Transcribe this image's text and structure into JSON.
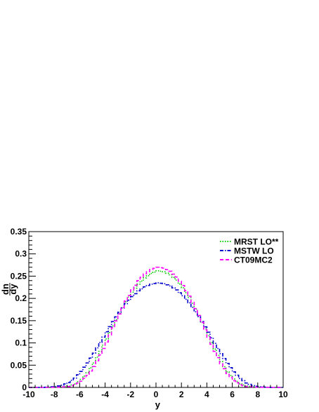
{
  "chart_data": {
    "type": "line",
    "title": "",
    "xlabel": "y",
    "ylabel_numerator": "dn",
    "ylabel_denominator": "dy",
    "xlim": [
      -10,
      10
    ],
    "ylim": [
      0,
      0.35
    ],
    "x_ticks": [
      "-10",
      "-8",
      "-6",
      "-4",
      "-2",
      "0",
      "2",
      "4",
      "6",
      "8",
      "10"
    ],
    "y_ticks": [
      "0",
      "0.05",
      "0.1",
      "0.15",
      "0.2",
      "0.25",
      "0.3",
      "0.35"
    ],
    "grid": false,
    "legend_position": "top-right",
    "series": [
      {
        "name": "MRST LO**",
        "color": "#00cc00",
        "dash": "dotted",
        "x": [
          -10,
          -9,
          -8,
          -7,
          -6.5,
          -6,
          -5.5,
          -5,
          -4.5,
          -4,
          -3.5,
          -3,
          -2.5,
          -2,
          -1.5,
          -1,
          -0.5,
          0,
          0.5,
          1,
          1.5,
          2,
          2.5,
          3,
          3.5,
          4,
          4.5,
          5,
          5.5,
          6,
          6.5,
          7,
          8,
          9,
          10
        ],
        "values": [
          0,
          0,
          0.0005,
          0.003,
          0.008,
          0.018,
          0.033,
          0.055,
          0.081,
          0.109,
          0.138,
          0.166,
          0.192,
          0.214,
          0.232,
          0.246,
          0.256,
          0.262,
          0.26,
          0.253,
          0.241,
          0.224,
          0.202,
          0.176,
          0.147,
          0.116,
          0.086,
          0.058,
          0.035,
          0.019,
          0.008,
          0.003,
          0.0005,
          0,
          0
        ]
      },
      {
        "name": "MSTW LO",
        "color": "#0000cc",
        "dash": "dash-dot",
        "x": [
          -10,
          -9,
          -8,
          -7.5,
          -7,
          -6.5,
          -6,
          -5.5,
          -5,
          -4.5,
          -4,
          -3.5,
          -3,
          -2.5,
          -2,
          -1.5,
          -1,
          -0.5,
          0,
          0.5,
          1,
          1.5,
          2,
          2.5,
          3,
          3.5,
          4,
          4.5,
          5,
          5.5,
          6,
          6.5,
          7,
          7.5,
          8,
          9,
          10
        ],
        "values": [
          0,
          0,
          0.002,
          0.005,
          0.011,
          0.021,
          0.036,
          0.055,
          0.077,
          0.101,
          0.125,
          0.148,
          0.169,
          0.188,
          0.204,
          0.217,
          0.226,
          0.232,
          0.235,
          0.233,
          0.228,
          0.219,
          0.206,
          0.19,
          0.17,
          0.148,
          0.124,
          0.099,
          0.076,
          0.054,
          0.035,
          0.02,
          0.01,
          0.004,
          0.0015,
          0,
          0
        ]
      },
      {
        "name": "CT09MC2",
        "color": "#ff00ff",
        "dash": "dashed",
        "x": [
          -10,
          -9,
          -8,
          -7,
          -6.5,
          -6,
          -5.5,
          -5,
          -4.5,
          -4,
          -3.5,
          -3,
          -2.5,
          -2,
          -1.5,
          -1,
          -0.5,
          0,
          0.5,
          1,
          1.5,
          2,
          2.5,
          3,
          3.5,
          4,
          4.5,
          5,
          5.5,
          6,
          6.5,
          7,
          8,
          9,
          10
        ],
        "values": [
          0,
          0,
          0.0003,
          0.002,
          0.006,
          0.014,
          0.027,
          0.047,
          0.073,
          0.102,
          0.134,
          0.165,
          0.194,
          0.219,
          0.24,
          0.255,
          0.265,
          0.27,
          0.268,
          0.261,
          0.248,
          0.229,
          0.205,
          0.177,
          0.146,
          0.113,
          0.081,
          0.053,
          0.031,
          0.015,
          0.006,
          0.002,
          0.0003,
          0,
          0
        ]
      }
    ]
  }
}
